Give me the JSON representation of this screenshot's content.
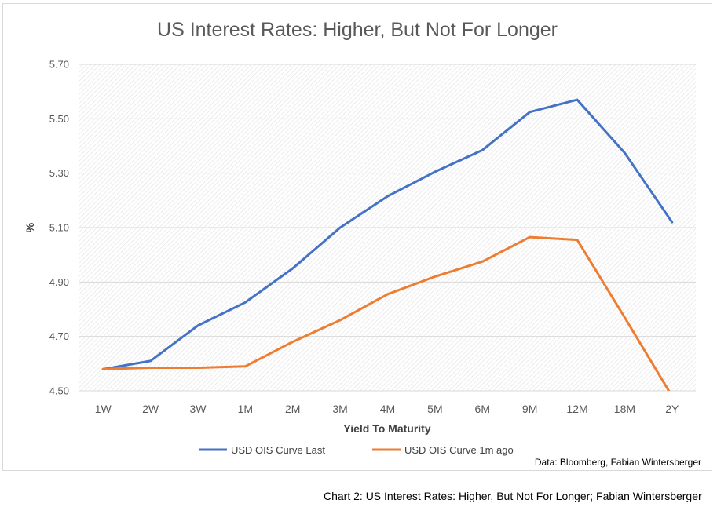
{
  "caption": "Chart 2: US Interest Rates: Higher, But Not For Longer; Fabian Wintersberger",
  "chart_data": {
    "type": "line",
    "title": "US Interest Rates: Higher, But Not For Longer",
    "xlabel": "Yield To Maturity",
    "ylabel": "%",
    "source": "Data: Bloomberg, Fabian Wintersberger",
    "categories": [
      "1W",
      "2W",
      "3W",
      "1M",
      "2M",
      "3M",
      "4M",
      "5M",
      "6M",
      "9M",
      "12M",
      "18M",
      "2Y"
    ],
    "ylim": [
      4.5,
      5.7
    ],
    "yticks": [
      "4.50",
      "4.70",
      "4.90",
      "5.10",
      "5.30",
      "5.50",
      "5.70"
    ],
    "grid": true,
    "legend_position": "bottom",
    "series": [
      {
        "name": "USD OIS Curve Last",
        "color": "#4472c4",
        "values": [
          4.58,
          4.61,
          4.74,
          4.825,
          4.95,
          5.1,
          5.215,
          5.305,
          5.385,
          5.525,
          5.57,
          5.375,
          5.12
        ]
      },
      {
        "name": "USD OIS Curve 1m ago",
        "color": "#ed7d31",
        "values": [
          4.58,
          4.585,
          4.585,
          4.59,
          4.68,
          4.76,
          4.855,
          4.92,
          4.975,
          5.065,
          5.055,
          4.77,
          4.48
        ]
      }
    ]
  }
}
